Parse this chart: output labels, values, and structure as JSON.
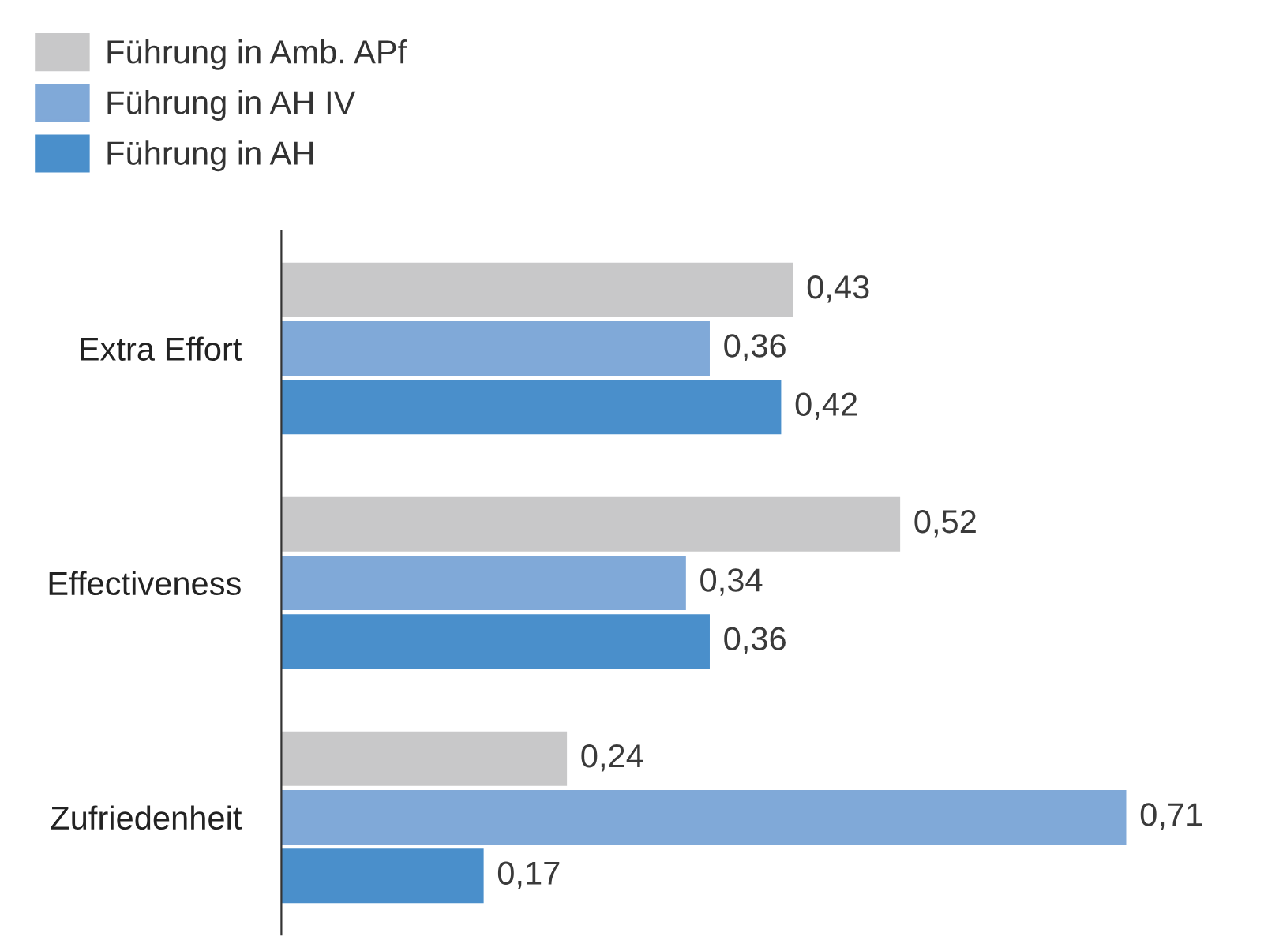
{
  "chart_data": {
    "type": "bar",
    "orientation": "horizontal",
    "categories": [
      "Extra Effort",
      "Effectiveness",
      "Zufriedenheit"
    ],
    "series": [
      {
        "name": "Führung in Amb. APf",
        "color": "#c8c8c9",
        "values": [
          0.43,
          0.52,
          0.24
        ],
        "value_labels": [
          "0,43",
          "0,52",
          "0,24"
        ]
      },
      {
        "name": "Führung in AH IV",
        "color": "#80a9d8",
        "values": [
          0.36,
          0.34,
          0.71
        ],
        "value_labels": [
          "0,36",
          "0,34",
          "0,71"
        ]
      },
      {
        "name": "Führung in AH",
        "color": "#4a8fcb",
        "values": [
          0.42,
          0.36,
          0.17
        ],
        "value_labels": [
          "0,42",
          "0,36",
          "0,17"
        ]
      }
    ],
    "legend": "top left",
    "grid": false
  }
}
